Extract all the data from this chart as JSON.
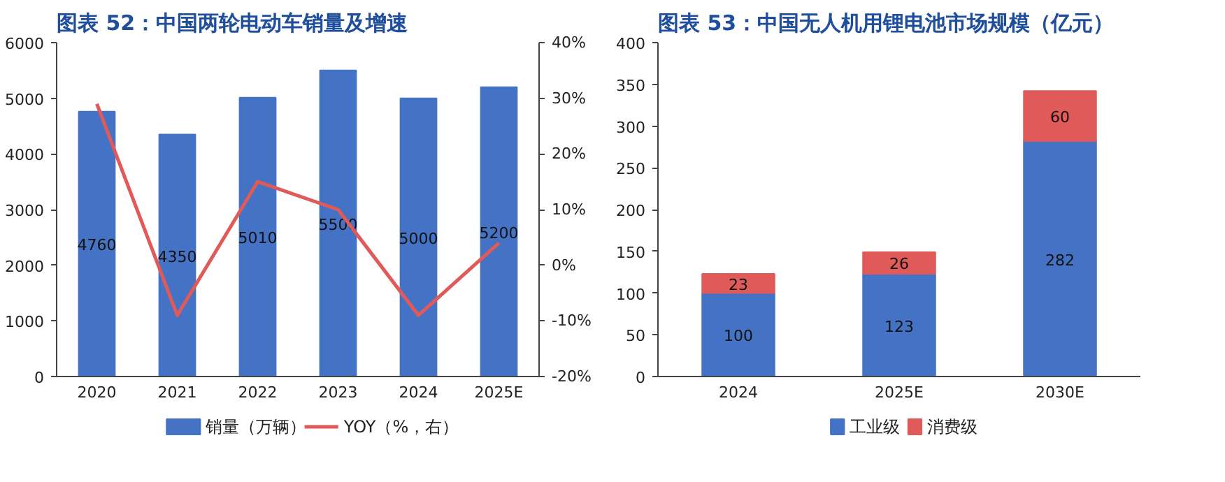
{
  "chart_data": [
    {
      "type": "bar",
      "title": "图表 52：中国两轮电动车销量及增速",
      "categories": [
        "2020",
        "2021",
        "2022",
        "2023",
        "2024",
        "2025E"
      ],
      "series": [
        {
          "name": "销量（万辆）",
          "color": "#4472c4",
          "values": [
            4760,
            4350,
            5010,
            5500,
            5000,
            5200
          ],
          "value_labels": [
            "4760",
            "4350",
            "5010",
            "5500",
            "5000",
            "5200"
          ]
        },
        {
          "name": "YOY（%，右）",
          "type": "line",
          "axis": "y2",
          "color": "#e05a5a",
          "values": [
            29,
            -9,
            15,
            10,
            -9,
            4
          ]
        }
      ],
      "ylim": [
        0,
        6000
      ],
      "yticks": [
        0,
        1000,
        2000,
        3000,
        4000,
        5000,
        6000
      ],
      "y2lim": [
        -20,
        40
      ],
      "y2ticks": [
        {
          "value": -20,
          "label": "-20%"
        },
        {
          "value": -10,
          "label": "-10%"
        },
        {
          "value": 0,
          "label": "0%"
        },
        {
          "value": 10,
          "label": "10%"
        },
        {
          "value": 20,
          "label": "20%"
        },
        {
          "value": 30,
          "label": "30%"
        },
        {
          "value": 40,
          "label": "40%"
        }
      ],
      "legend": "bottom"
    },
    {
      "type": "bar",
      "title": "图表 53：中国无人机用锂电池市场规模（亿元）",
      "categories": [
        "2024",
        "2025E",
        "2030E"
      ],
      "stacked": true,
      "series": [
        {
          "name": "工业级",
          "color": "#4472c4",
          "values": [
            100,
            123,
            282
          ]
        },
        {
          "name": "消费级",
          "color": "#e05a5a",
          "values": [
            23,
            26,
            60
          ]
        }
      ],
      "ylim": [
        0,
        400
      ],
      "yticks": [
        0,
        50,
        100,
        150,
        200,
        250,
        300,
        350,
        400
      ],
      "data_labels": true,
      "legend": "bottom"
    }
  ]
}
